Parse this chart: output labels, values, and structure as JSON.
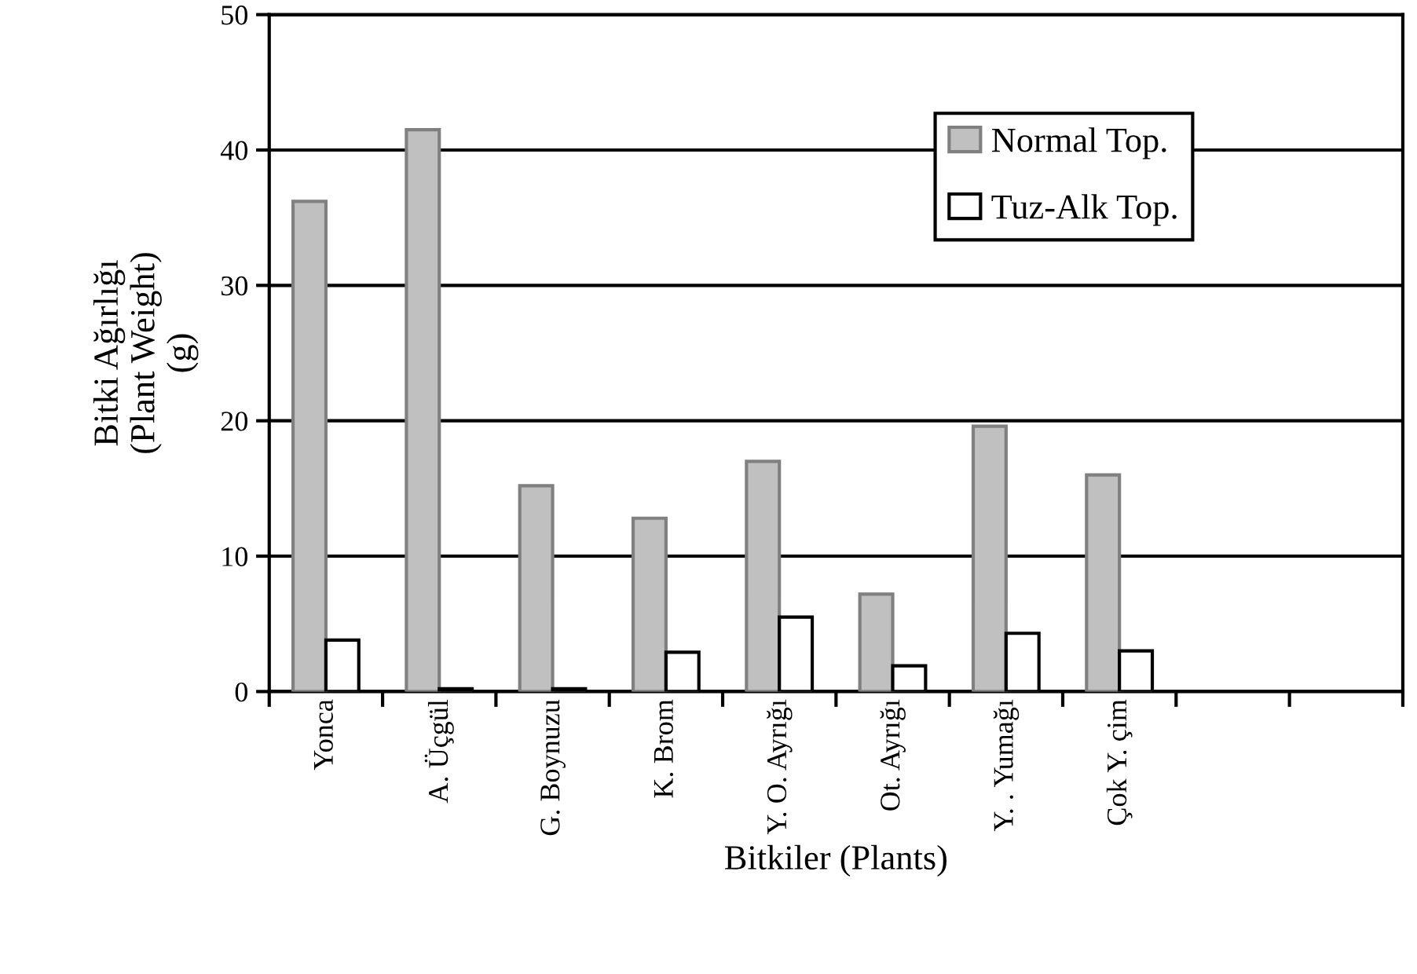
{
  "chart_data": {
    "type": "bar",
    "xlabel": "Bitkiler (Plants)",
    "ylabel": "Bitki Ağırlığı\n(Plant Weight)\n(g)",
    "categories": [
      "Yonca",
      "A. Üçgül",
      "G. Boynuzu",
      "K. Brom",
      "Y. O. Ayrığı",
      "Ot. Ayrığı",
      "Y. . Yumağı",
      "Çok Y. çim",
      null,
      null
    ],
    "series": [
      {
        "name": "Normal Top.",
        "color": "#c0c0c0",
        "values": [
          36.2,
          41.5,
          15.2,
          12.8,
          17.0,
          7.2,
          19.6,
          16.0,
          null,
          null
        ]
      },
      {
        "name": "Tuz-Alk Top.",
        "color": "#ffffff",
        "values": [
          3.8,
          0.2,
          0.2,
          2.9,
          5.5,
          1.9,
          4.3,
          3.0,
          null,
          null
        ]
      }
    ],
    "ylim": [
      0,
      50
    ],
    "yticks": [
      0,
      10,
      20,
      30,
      40,
      50
    ],
    "grid": "y",
    "legend": "top right"
  }
}
